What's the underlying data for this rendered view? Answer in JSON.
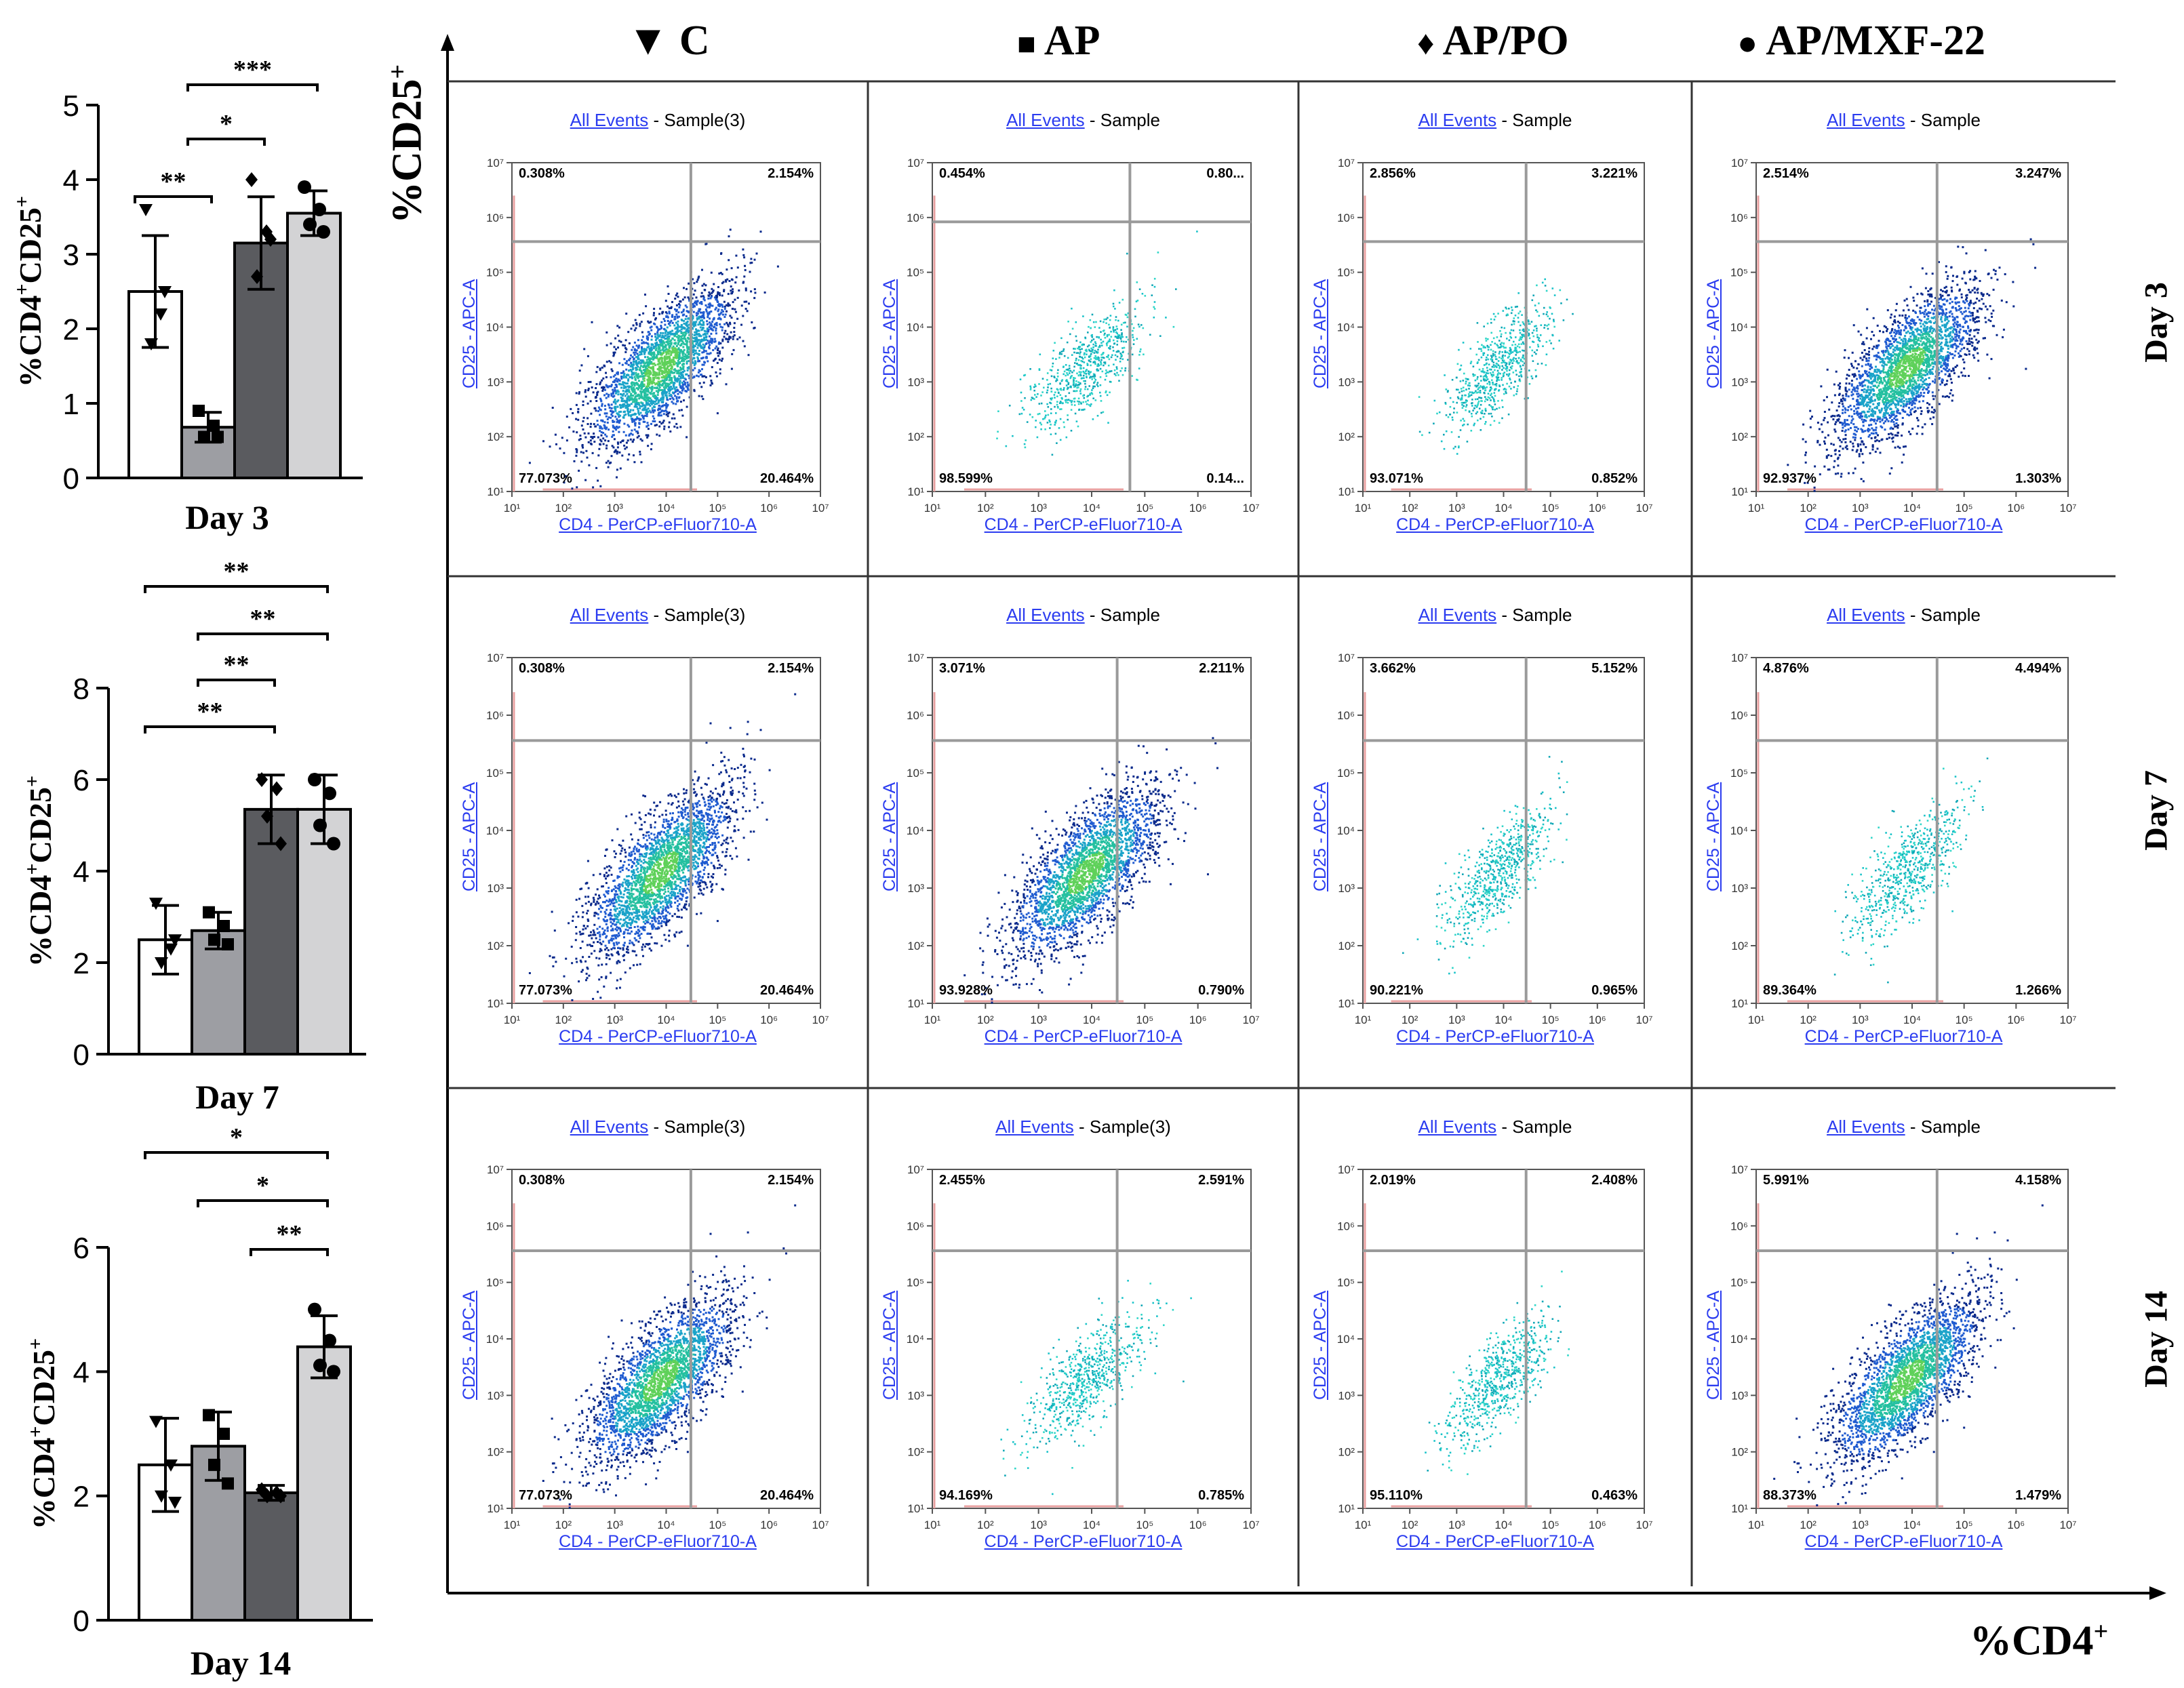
{
  "column_headers": [
    {
      "symbol": "▼",
      "label": "C"
    },
    {
      "symbol": "■",
      "label": "AP"
    },
    {
      "symbol": "♦",
      "label": "AP/PO"
    },
    {
      "symbol": "●",
      "label": "AP/MXF-22"
    }
  ],
  "row_labels": [
    "Day 3",
    "Day 7",
    "Day 14"
  ],
  "axis_titles": {
    "y_main": "%CD25",
    "y_sup": "+",
    "x_main": "%CD4",
    "x_sup": "+"
  },
  "flow_labels": {
    "x_axis": "CD4 - PerCP-eFluor710-A",
    "y_axis": "CD25 - APC-A",
    "events_link": "All Events",
    "tick_labels": [
      "10¹",
      "10²",
      "10³",
      "10⁴",
      "10⁵",
      "10⁶",
      "10⁷"
    ]
  },
  "flow_panels": [
    [
      {
        "sample": " - Sample(3)",
        "q": [
          "0.308%",
          "2.154%",
          "77.073%",
          "20.464%"
        ],
        "density": "high"
      },
      {
        "sample": " - Sample",
        "q": [
          "0.454%",
          "0.80...",
          "98.599%",
          "0.14..."
        ],
        "density": "low"
      },
      {
        "sample": " - Sample",
        "q": [
          "2.856%",
          "3.221%",
          "93.071%",
          "0.852%"
        ],
        "density": "low"
      },
      {
        "sample": " - Sample",
        "q": [
          "2.514%",
          "3.247%",
          "92.937%",
          "1.303%"
        ],
        "density": "high"
      }
    ],
    [
      {
        "sample": " - Sample(3)",
        "q": [
          "0.308%",
          "2.154%",
          "77.073%",
          "20.464%"
        ],
        "density": "high"
      },
      {
        "sample": " - Sample",
        "q": [
          "3.071%",
          "2.211%",
          "93.928%",
          "0.790%"
        ],
        "density": "high"
      },
      {
        "sample": " - Sample",
        "q": [
          "3.662%",
          "5.152%",
          "90.221%",
          "0.965%"
        ],
        "density": "low"
      },
      {
        "sample": " - Sample",
        "q": [
          "4.876%",
          "4.494%",
          "89.364%",
          "1.266%"
        ],
        "density": "low"
      }
    ],
    [
      {
        "sample": " - Sample(3)",
        "q": [
          "0.308%",
          "2.154%",
          "77.073%",
          "20.464%"
        ],
        "density": "high"
      },
      {
        "sample": " - Sample(3)",
        "q": [
          "2.455%",
          "2.591%",
          "94.169%",
          "0.785%"
        ],
        "density": "low"
      },
      {
        "sample": " - Sample",
        "q": [
          "2.019%",
          "2.408%",
          "95.110%",
          "0.463%"
        ],
        "density": "low"
      },
      {
        "sample": " - Sample",
        "q": [
          "5.991%",
          "4.158%",
          "88.373%",
          "1.479%"
        ],
        "density": "high"
      }
    ]
  ],
  "chart_data": [
    {
      "type": "bar",
      "title": "Day 3",
      "ylabel": "%CD4+CD25+",
      "ylim": [
        0,
        5
      ],
      "yticks": [
        "0",
        "1",
        "2",
        "3",
        "4",
        "5"
      ],
      "categories": [
        "C",
        "AP",
        "AP/PO",
        "AP/MXF-22"
      ],
      "values": [
        2.5,
        0.68,
        3.15,
        3.55
      ],
      "errors": [
        0.75,
        0.2,
        0.62,
        0.3
      ],
      "points": [
        [
          3.6,
          2.2,
          1.8,
          2.5
        ],
        [
          0.9,
          0.7,
          0.55,
          0.55
        ],
        [
          4.0,
          3.3,
          2.7,
          3.2
        ],
        [
          3.9,
          3.6,
          3.4,
          3.3
        ]
      ],
      "significance": [
        {
          "from": 0,
          "to": 1,
          "label": "**"
        },
        {
          "from": 1,
          "to": 2,
          "label": "*"
        },
        {
          "from": 1,
          "to": 3,
          "label": "***"
        }
      ]
    },
    {
      "type": "bar",
      "title": "Day 7",
      "ylabel": "%CD4+CD25+",
      "ylim": [
        0,
        8
      ],
      "yticks": [
        "0",
        "2",
        "4",
        "6",
        "8"
      ],
      "categories": [
        "C",
        "AP",
        "AP/PO",
        "AP/MXF-22"
      ],
      "values": [
        2.5,
        2.7,
        5.35,
        5.35
      ],
      "errors": [
        0.75,
        0.4,
        0.75,
        0.75
      ],
      "points": [
        [
          3.3,
          2.3,
          2.0,
          2.5
        ],
        [
          3.1,
          2.8,
          2.5,
          2.4
        ],
        [
          6.0,
          5.8,
          5.2,
          4.6
        ],
        [
          6.0,
          5.7,
          5.0,
          4.6
        ]
      ],
      "significance": [
        {
          "from": 0,
          "to": 2,
          "label": "**"
        },
        {
          "from": 1,
          "to": 2,
          "label": "**"
        },
        {
          "from": 1,
          "to": 3,
          "label": "**"
        },
        {
          "from": 0,
          "to": 3,
          "label": "**"
        }
      ]
    },
    {
      "type": "bar",
      "title": "Day 14",
      "ylabel": "%CD4+CD25+",
      "ylim": [
        0,
        6
      ],
      "yticks": [
        "0",
        "2",
        "4",
        "6"
      ],
      "categories": [
        "C",
        "AP",
        "AP/PO",
        "AP/MXF-22"
      ],
      "values": [
        2.5,
        2.8,
        2.05,
        4.4
      ],
      "errors": [
        0.75,
        0.55,
        0.12,
        0.5
      ],
      "points": [
        [
          3.2,
          2.5,
          2.0,
          1.9
        ],
        [
          3.3,
          3.0,
          2.5,
          2.2
        ],
        [
          2.1,
          2.05,
          2.0,
          2.0
        ],
        [
          5.0,
          4.5,
          4.1,
          4.0
        ]
      ],
      "significance": [
        {
          "from": 2,
          "to": 3,
          "label": "**"
        },
        {
          "from": 1,
          "to": 3,
          "label": "*"
        },
        {
          "from": 0,
          "to": 3,
          "label": "*"
        }
      ]
    }
  ],
  "colors": {
    "bars": [
      "#ffffff",
      "#9d9ea3",
      "#5a5b5f",
      "#d3d3d5"
    ],
    "link": "#2b3cf0",
    "gate": "#9a9a9a",
    "panel_border": "#444444",
    "dots_dense": [
      "#0a2a8c",
      "#1f5bd0",
      "#1aa3c9",
      "#24c0a0",
      "#5fd15a"
    ],
    "dots_sparse": [
      "#19c3c9",
      "#2fd6c8",
      "#10a7b6"
    ]
  }
}
